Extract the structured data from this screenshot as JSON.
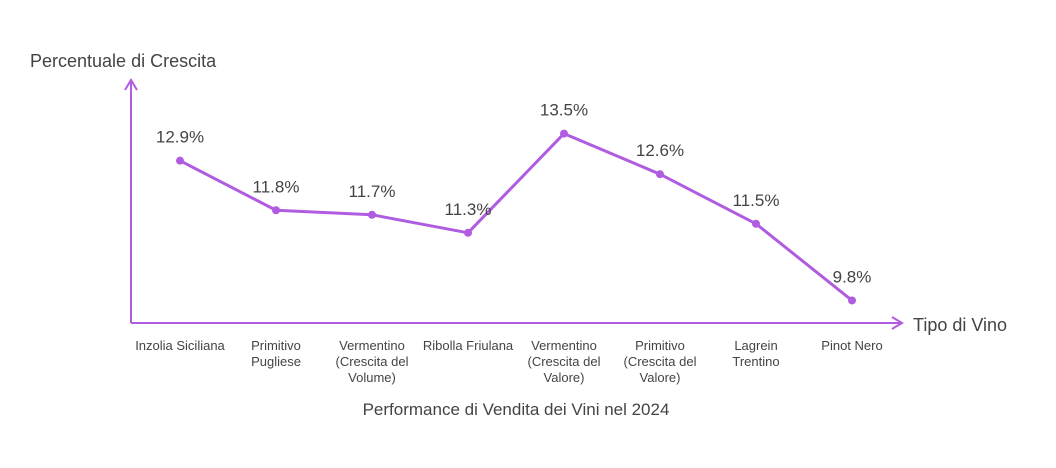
{
  "chart_data": {
    "type": "line",
    "title": "Performance di Vendita dei Vini nel 2024",
    "y_label": "Percentuale di Crescita",
    "x_label": "Tipo di Vino",
    "categories": [
      "Inzolia Siciliana",
      "Primitivo Pugliese",
      "Vermentino (Crescita del Volume)",
      "Ribolla Friulana",
      "Vermentino (Crescita del Valore)",
      "Primitivo (Crescita del Valore)",
      "Lagrein Trentino",
      "Pinot Nero"
    ],
    "series": [
      {
        "name": "Percentuale di Crescita",
        "color": "#b05ce0",
        "values": [
          12.9,
          11.8,
          11.7,
          11.3,
          13.5,
          12.6,
          11.5,
          9.8
        ],
        "value_labels": [
          "12.9%",
          "11.8%",
          "11.7%",
          "11.3%",
          "13.5%",
          "12.6%",
          "11.5%",
          "9.8%"
        ]
      }
    ],
    "ylim": [
      9.3,
      14.6
    ]
  }
}
